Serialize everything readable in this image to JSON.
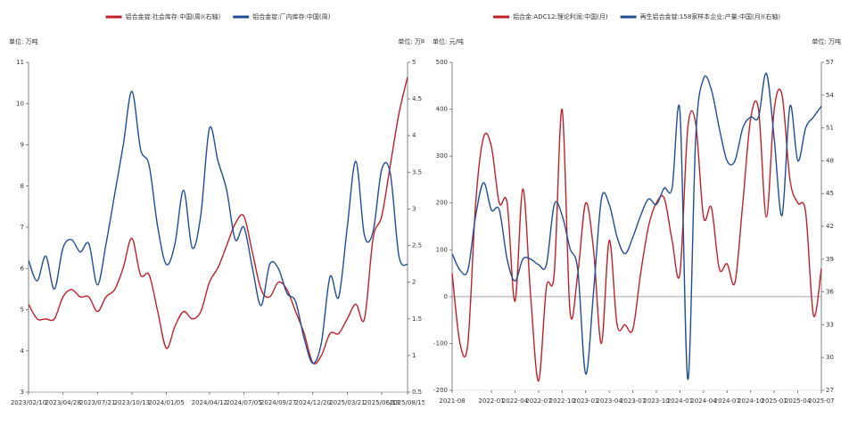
{
  "chart_data": [
    {
      "type": "line",
      "y_unit_label": "单位: 万吨",
      "y2_unit_label": "单位: 万吨",
      "categories": [
        "2023/02/10",
        null,
        null,
        null,
        "2023/04/28",
        null,
        null,
        null,
        "2023/07/21",
        null,
        null,
        null,
        "2023/10/13",
        null,
        null,
        null,
        "2024/01/05",
        null,
        null,
        null,
        null,
        "2024/04/12",
        null,
        null,
        null,
        "2024/07/05",
        null,
        null,
        null,
        "2024/09/27",
        null,
        null,
        null,
        "2024/12/20",
        null,
        null,
        null,
        "2025/03/21",
        null,
        null,
        null,
        "2025/06/13",
        null,
        null,
        "2025/08/15"
      ],
      "series": [
        {
          "name": "铝合金锭:社会库存:中国(周)(右轴)",
          "color": "#c0202a",
          "axis": "y2",
          "values": [
            1.7,
            1.5,
            1.5,
            1.5,
            1.8,
            1.9,
            1.8,
            1.8,
            1.6,
            1.8,
            1.9,
            2.2,
            2.6,
            2.1,
            2.1,
            1.6,
            1.1,
            1.4,
            1.6,
            1.5,
            1.6,
            2.0,
            2.2,
            2.5,
            2.8,
            2.9,
            2.4,
            1.9,
            1.8,
            2.0,
            1.9,
            1.6,
            1.3,
            0.9,
            1.0,
            1.3,
            1.3,
            1.5,
            1.7,
            1.5,
            2.6,
            2.9,
            3.6,
            4.3,
            4.8
          ]
        },
        {
          "name": "铝合金锭:厂内库存:中国(周)",
          "color": "#1f4e96",
          "values": [
            6.2,
            5.7,
            6.3,
            5.5,
            6.5,
            6.7,
            6.4,
            6.6,
            5.6,
            6.6,
            7.8,
            9.0,
            10.3,
            8.9,
            8.5,
            7.0,
            6.1,
            6.6,
            7.9,
            6.5,
            7.3,
            9.4,
            8.6,
            7.9,
            6.7,
            7.0,
            6.0,
            5.1,
            6.1,
            6.0,
            5.4,
            5.2,
            4.3,
            3.7,
            4.2,
            5.8,
            5.3,
            7.0,
            8.6,
            6.8,
            6.9,
            8.4,
            8.3,
            6.3,
            6.1
          ]
        }
      ],
      "ylim": [
        3,
        11
      ],
      "yticks": [
        3,
        4,
        5,
        6,
        7,
        8,
        9,
        10,
        11
      ],
      "y2lim": [
        0.5,
        5
      ],
      "y2ticks": [
        0.5,
        1,
        1.5,
        2,
        2.5,
        3,
        3.5,
        4,
        4.5,
        5
      ]
    },
    {
      "type": "line",
      "y_unit_label": "单位: 元/吨",
      "y2_unit_label": "单位: 万吨",
      "categories": [
        "2021-08",
        null,
        null,
        null,
        null,
        "2022-01",
        null,
        null,
        "2022-04",
        null,
        null,
        "2022-07",
        null,
        null,
        "2022-10",
        null,
        null,
        "2023-01",
        null,
        null,
        "2023-04",
        null,
        null,
        "2023-07",
        null,
        null,
        "2023-10",
        null,
        null,
        "2024-01",
        null,
        null,
        "2024-04",
        null,
        null,
        "2024-07",
        null,
        null,
        "2024-10",
        null,
        null,
        "2025-01",
        null,
        null,
        "2025-04",
        null,
        null,
        "2025-07"
      ],
      "series": [
        {
          "name": "铝合金:ADC12:理论利润:中国(月)",
          "color": "#c0202a",
          "values": [
            50,
            -100,
            -100,
            200,
            340,
            320,
            200,
            200,
            -10,
            230,
            0,
            -180,
            20,
            50,
            400,
            -30,
            50,
            200,
            100,
            -100,
            120,
            -60,
            -60,
            -70,
            50,
            150,
            200,
            210,
            120,
            50,
            360,
            370,
            170,
            190,
            60,
            70,
            30,
            200,
            380,
            400,
            170,
            400,
            430,
            250,
            200,
            180,
            -40,
            60
          ]
        },
        {
          "name": "再生铝合金锭:158家样本企业:产量:中国(月)(右轴)",
          "color": "#1f4e96",
          "axis": "y2",
          "values": [
            39.5,
            38,
            38,
            43,
            46,
            43.5,
            43.5,
            39,
            37,
            39,
            39,
            38.5,
            38.5,
            44,
            43,
            40,
            38,
            28.5,
            36,
            44.5,
            44,
            41,
            39.5,
            41,
            43,
            44.5,
            44,
            45.5,
            45.5,
            52.5,
            28,
            50,
            55.5,
            54.5,
            51,
            48,
            48,
            51,
            52,
            52,
            56,
            50,
            43,
            53,
            48,
            51,
            52,
            53
          ]
        }
      ],
      "ylim": [
        -200,
        500
      ],
      "yticks": [
        -200,
        -100,
        0,
        100,
        200,
        300,
        400,
        500
      ],
      "y2lim": [
        27,
        57
      ],
      "y2ticks": [
        27,
        30,
        33,
        36,
        39,
        42,
        45,
        48,
        51,
        54,
        57
      ]
    }
  ]
}
